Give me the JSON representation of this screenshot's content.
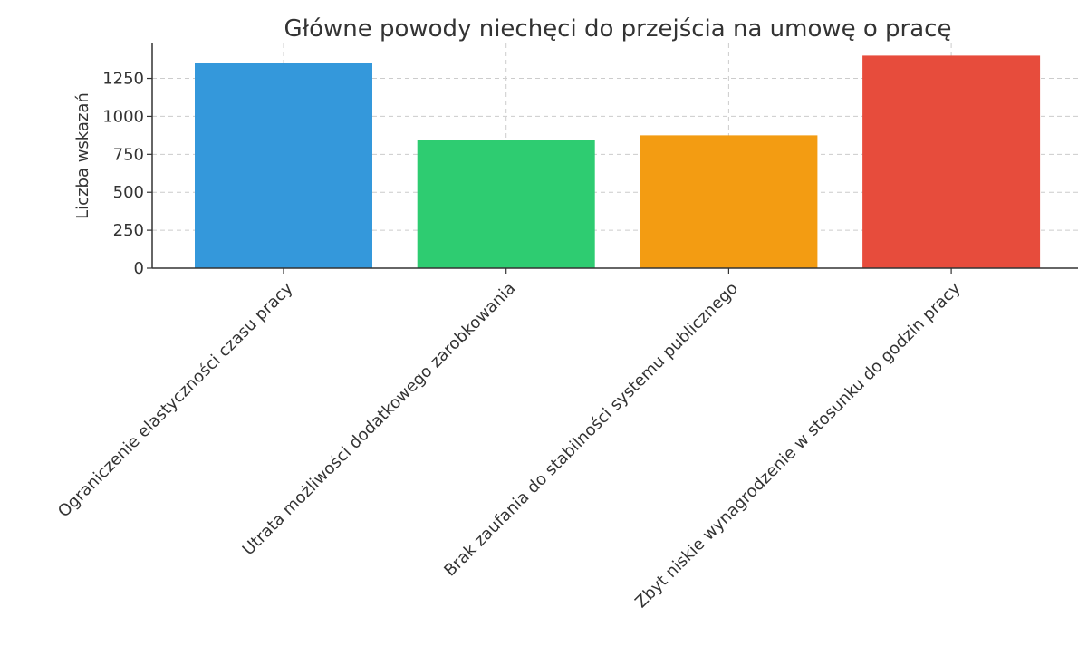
{
  "chart_data": {
    "type": "bar",
    "title": "Główne powody niechęci do przejścia na umowę o pracę",
    "xlabel": "",
    "ylabel": "Liczba wskazań",
    "categories": [
      "Ograniczenie elastyczności czasu pracy",
      "Utrata możliwości dodatkowego zarobkowania",
      "Brak zaufania do stabilności systemu publicznego",
      "Zbyt niskie wynagrodzenie w stosunku do godzin pracy"
    ],
    "values": [
      1350,
      845,
      875,
      1400
    ],
    "colors": [
      "#3498db",
      "#2ecc71",
      "#f39c12",
      "#e74c3c"
    ],
    "ylim": [
      0,
      1480
    ],
    "yticks": [
      0,
      250,
      500,
      750,
      1000,
      1250
    ],
    "grid": true,
    "legend": "none"
  }
}
